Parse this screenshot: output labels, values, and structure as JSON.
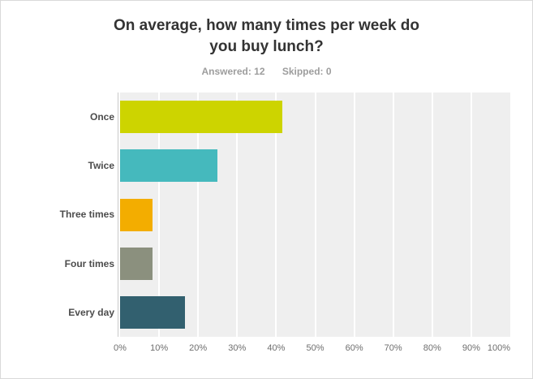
{
  "title": {
    "full": "On average, how many times per week do you buy lunch?",
    "lines": [
      "On average, how many times per week do",
      "you buy lunch?"
    ]
  },
  "subtitle": {
    "answered": "Answered: 12",
    "skipped": "Skipped: 0"
  },
  "chart_data": {
    "type": "bar",
    "orientation": "horizontal",
    "title": "On average, how many times per week do you buy lunch?",
    "subtitle": "Answered: 12  Skipped: 0",
    "categories": [
      "Once",
      "Twice",
      "Three times",
      "Four times",
      "Every day"
    ],
    "values": [
      41.67,
      25.0,
      8.33,
      8.33,
      16.67
    ],
    "value_unit": "%",
    "bar_colors": [
      "#cdd400",
      "#45b9bd",
      "#f3ad00",
      "#8b907e",
      "#32606f"
    ],
    "x_ticks": [
      "0%",
      "10%",
      "20%",
      "30%",
      "40%",
      "50%",
      "60%",
      "70%",
      "80%",
      "90%",
      "100%"
    ],
    "xlim": [
      0,
      100
    ],
    "xlabel": "",
    "ylabel": "",
    "grid": true,
    "legend": "none",
    "plot_background": "#efefef",
    "gridline_color": "#ffffff"
  }
}
